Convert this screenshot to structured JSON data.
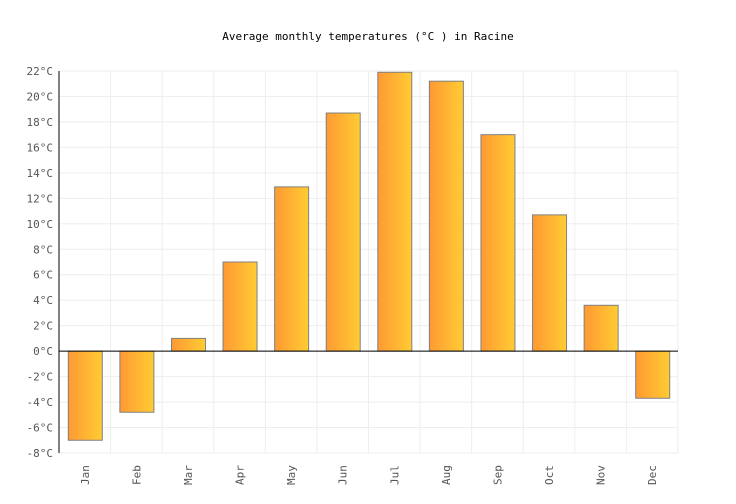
{
  "chart_data": {
    "type": "bar",
    "title": "Average monthly temperatures (°C ) in Racine",
    "xlabel": "",
    "ylabel": "",
    "categories": [
      "Jan",
      "Feb",
      "Mar",
      "Apr",
      "May",
      "Jun",
      "Jul",
      "Aug",
      "Sep",
      "Oct",
      "Nov",
      "Dec"
    ],
    "values": [
      -7.0,
      -4.8,
      1.0,
      7.0,
      12.9,
      18.7,
      21.9,
      21.2,
      17.0,
      10.7,
      3.6,
      -3.7
    ],
    "ylim": [
      -8,
      22
    ],
    "yticks": [
      -8,
      -6,
      -4,
      -2,
      0,
      2,
      4,
      6,
      8,
      10,
      12,
      14,
      16,
      18,
      20,
      22
    ],
    "ytick_unit": "°C",
    "grid": true,
    "legend": "none",
    "colors": {
      "bar_start": "#ff9933",
      "bar_end": "#ffcc33",
      "bar_border": "#808080",
      "grid": "#eeeeee",
      "axis": "#000000",
      "text": "#555555"
    }
  }
}
